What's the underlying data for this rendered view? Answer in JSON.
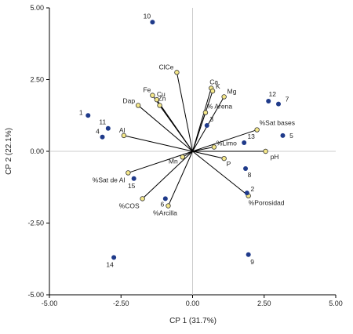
{
  "chart_data": {
    "type": "scatter",
    "subtype": "pca-biplot",
    "xlabel": "CP 1 (31.7%)",
    "ylabel": "CP 2 (22.1%)",
    "xlim": [
      -5.0,
      5.0
    ],
    "ylim": [
      -5.0,
      5.0
    ],
    "xticks": [
      "-5.00",
      "-2.50",
      "0.00",
      "2.50",
      "5.00"
    ],
    "yticks": [
      "-5.00",
      "-2.50",
      "0.00",
      "2.50",
      "5.00"
    ],
    "grid": false,
    "legend": "none",
    "colors": {
      "samples": "#1f3a8a",
      "variables": "#f5e88a",
      "vectors": "#000000",
      "zero_lines": "#cccccc"
    },
    "samples": [
      {
        "label": "1",
        "x": -3.65,
        "y": 1.25
      },
      {
        "label": "2",
        "x": 1.9,
        "y": -1.45
      },
      {
        "label": "3",
        "x": 0.5,
        "y": 0.9
      },
      {
        "label": "4",
        "x": -3.15,
        "y": 0.5
      },
      {
        "label": "5",
        "x": 3.15,
        "y": 0.55
      },
      {
        "label": "6",
        "x": -0.95,
        "y": -1.65
      },
      {
        "label": "7",
        "x": 3.0,
        "y": 1.65
      },
      {
        "label": "8",
        "x": 1.85,
        "y": -0.6
      },
      {
        "label": "9",
        "x": 1.95,
        "y": -3.6
      },
      {
        "label": "10",
        "x": -1.4,
        "y": 4.5
      },
      {
        "label": "11",
        "x": -2.95,
        "y": 0.8
      },
      {
        "label": "12",
        "x": 2.65,
        "y": 1.75
      },
      {
        "label": "13",
        "x": 1.8,
        "y": 0.3
      },
      {
        "label": "14",
        "x": -2.75,
        "y": -3.7
      },
      {
        "label": "15",
        "x": -2.05,
        "y": -0.95
      }
    ],
    "variables": [
      {
        "label": "ClCe",
        "x": -0.55,
        "y": 2.75
      },
      {
        "label": "Ca",
        "x": 0.65,
        "y": 2.2
      },
      {
        "label": "K",
        "x": 0.7,
        "y": 2.1
      },
      {
        "label": "Mg",
        "x": 1.1,
        "y": 1.9
      },
      {
        "label": "Fe",
        "x": -1.4,
        "y": 1.95
      },
      {
        "label": "Cu",
        "x": -1.25,
        "y": 1.8
      },
      {
        "label": "Zn",
        "x": -1.15,
        "y": 1.6
      },
      {
        "label": "Dap",
        "x": -1.9,
        "y": 1.6
      },
      {
        "label": "% Arena",
        "x": 0.45,
        "y": 1.35
      },
      {
        "label": "%Sat bases",
        "x": 2.25,
        "y": 0.75
      },
      {
        "label": "Al",
        "x": -2.4,
        "y": 0.55
      },
      {
        "label": "%Limo",
        "x": 0.75,
        "y": 0.15
      },
      {
        "label": "pH",
        "x": 2.55,
        "y": 0.0
      },
      {
        "label": "P",
        "x": 1.1,
        "y": -0.25
      },
      {
        "label": "Mn",
        "x": -0.35,
        "y": -0.2
      },
      {
        "label": "%Sat de Al",
        "x": -2.25,
        "y": -0.75
      },
      {
        "label": "%Porosidad",
        "x": 1.95,
        "y": -1.55
      },
      {
        "label": "%COS",
        "x": -1.75,
        "y": -1.65
      },
      {
        "label": "%Arcilla",
        "x": -0.85,
        "y": -1.9
      }
    ]
  }
}
